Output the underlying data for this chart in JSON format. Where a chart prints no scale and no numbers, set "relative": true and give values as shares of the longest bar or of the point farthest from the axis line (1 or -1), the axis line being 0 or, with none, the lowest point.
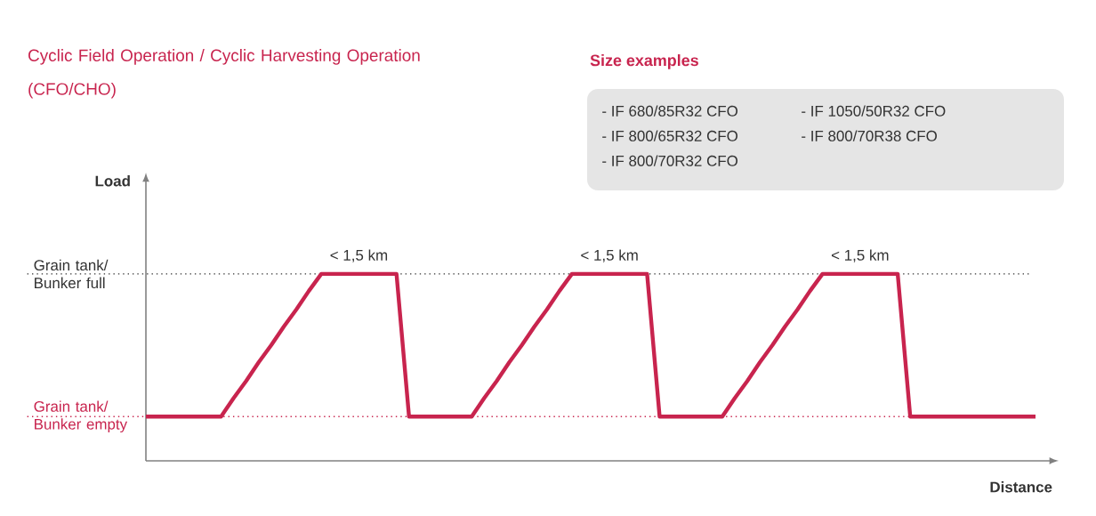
{
  "chart_data": {
    "type": "line",
    "title": "Cyclic Field Operation / Cyclic Harvesting Operation (CFO/CHO)",
    "subtitle": "Size examples",
    "xlabel": "Distance",
    "relative": true,
    "categories": [
      null,
      null,
      null,
      null,
      null,
      null,
      null,
      null,
      null,
      null,
      null,
      null,
      null,
      null,
      null,
      null,
      null,
      null,
      null,
      null,
      null,
      null,
      null,
      null,
      null,
      null,
      null,
      null,
      null,
      null,
      null,
      null,
      null,
      null,
      null,
      null,
      null,
      null,
      null,
      null,
      null,
      null,
      null,
      null,
      null,
      null,
      null,
      null,
      null,
      null,
      null,
      null,
      null,
      null,
      null,
      null,
      null,
      null,
      null,
      null,
      null,
      null,
      null,
      null,
      null,
      null,
      null,
      null,
      null,
      null,
      null,
      null
    ],
    "series": [
      {
        "color": "#c8244e",
        "values": [
          0,
          0,
          0,
          0,
          0,
          0,
          0,
          0.13,
          0.25,
          0.38,
          0.5,
          0.63,
          0.75,
          0.88,
          1,
          1,
          1,
          1,
          1,
          1,
          1,
          0,
          0,
          0,
          0,
          0,
          0,
          0.13,
          0.25,
          0.38,
          0.5,
          0.63,
          0.75,
          0.88,
          1,
          1,
          1,
          1,
          1,
          1,
          1,
          0,
          0,
          0,
          0,
          0,
          0,
          0.13,
          0.25,
          0.38,
          0.5,
          0.63,
          0.75,
          0.88,
          1,
          1,
          1,
          1,
          1,
          1,
          1,
          0,
          0,
          0,
          0,
          0,
          0,
          0,
          0,
          0,
          0,
          0
        ]
      }
    ],
    "line_style": "solid",
    "ref_lines": [
      {
        "axis": "y",
        "value": 1,
        "label": "Grain tank/ Bunker full",
        "line_style": "dotted",
        "color": "#333333"
      },
      {
        "axis": "y",
        "value": 0,
        "label": "Grain tank/ Bunker empty",
        "line_style": "dotted",
        "color": "#c8244e"
      }
    ],
    "annotations": [
      "< 1,5 km",
      "< 1,5 km",
      "< 1,5 km",
      "Load",
      "- IF 680/85R32 CFO",
      "- IF 1050/50R32 CFO",
      "- IF 800/65R32 CFO",
      "- IF 800/70R38 CFO",
      "- IF 800/70R32 CFO"
    ]
  }
}
